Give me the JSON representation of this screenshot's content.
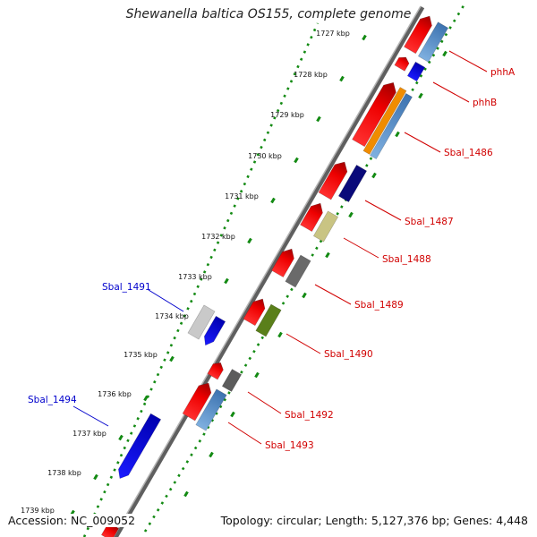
{
  "title": "Shewanella baltica OS155, complete genome",
  "footer": {
    "accession": "Accession: NC_009052",
    "summary": "Topology: circular; Length: 5,127,376 bp; Genes: 4,448"
  },
  "colors": {
    "backbone": "#8c8c8c",
    "tick_dots": "#138a13",
    "forward_label": "#d10000",
    "reverse_label": "#0000cc"
  },
  "scale_labels": [
    "1727 kbp",
    "1728 kbp",
    "1729 kbp",
    "1730 kbp",
    "1731 kbp",
    "1732 kbp",
    "1733 kbp",
    "1734 kbp",
    "1735 kbp",
    "1736 kbp",
    "1737 kbp",
    "1738 kbp",
    "1739 kbp"
  ],
  "gene_labels": [
    {
      "text": "phhA",
      "strand": "forward"
    },
    {
      "text": "phhB",
      "strand": "forward"
    },
    {
      "text": "Sbal_1486",
      "strand": "forward"
    },
    {
      "text": "Sbal_1487",
      "strand": "forward"
    },
    {
      "text": "Sbal_1488",
      "strand": "forward"
    },
    {
      "text": "Sbal_1489",
      "strand": "forward"
    },
    {
      "text": "Sbal_1490",
      "strand": "forward"
    },
    {
      "text": "Sbal_1492",
      "strand": "forward"
    },
    {
      "text": "Sbal_1493",
      "strand": "forward"
    },
    {
      "text": "Sbal_1491",
      "strand": "reverse"
    },
    {
      "text": "Sbal_1494",
      "strand": "reverse"
    }
  ]
}
